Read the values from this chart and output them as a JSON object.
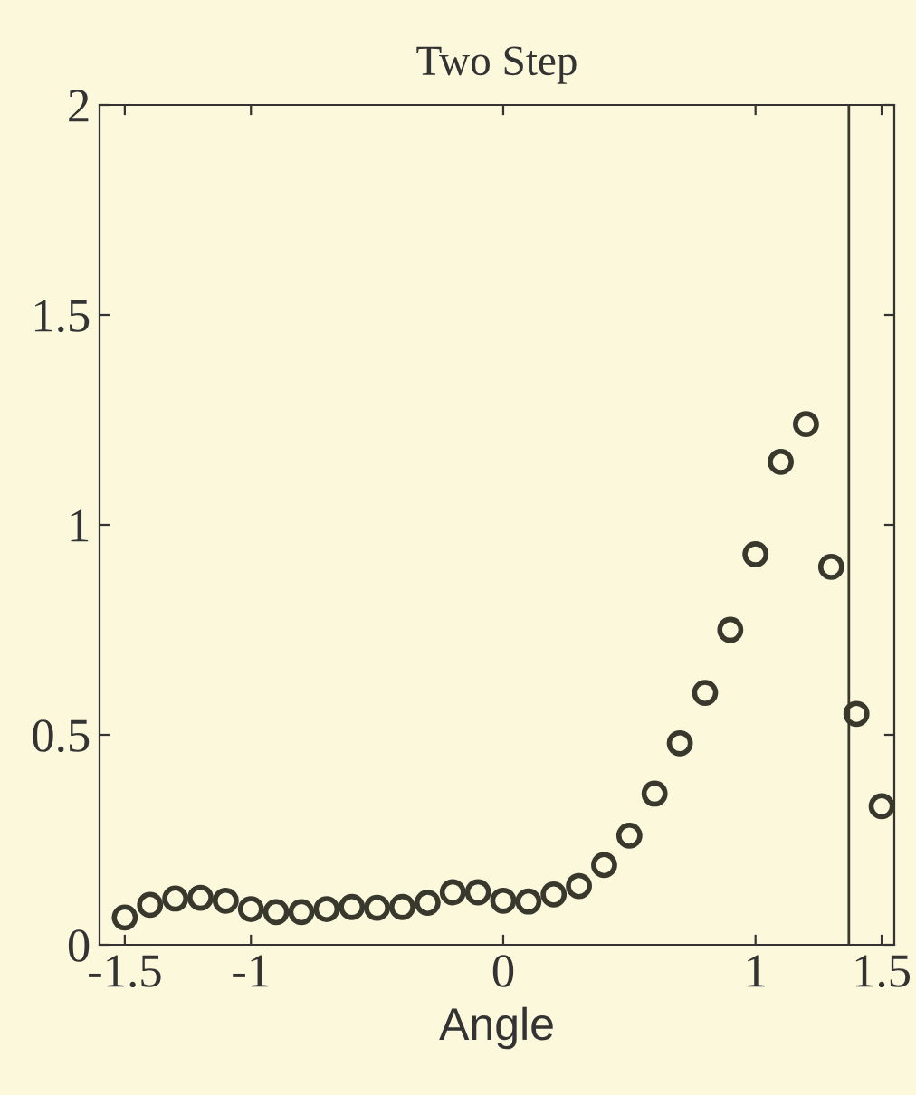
{
  "chart_data": {
    "type": "scatter",
    "title": "Two Step",
    "xlabel": "Angle",
    "x": [
      -1.5,
      -1.4,
      -1.3,
      -1.2,
      -1.1,
      -1.0,
      -0.9,
      -0.8,
      -0.7,
      -0.6,
      -0.5,
      -0.4,
      -0.3,
      -0.2,
      -0.1,
      0.0,
      0.1,
      0.2,
      0.3,
      0.4,
      0.5,
      0.6,
      0.7,
      0.8,
      0.9,
      1.0,
      1.1,
      1.2,
      1.3,
      1.4,
      1.5
    ],
    "series": [
      {
        "color": "#38382c",
        "values": [
          0.065,
          0.095,
          0.11,
          0.112,
          0.105,
          0.085,
          0.078,
          0.078,
          0.085,
          0.09,
          0.088,
          0.09,
          0.1,
          0.125,
          0.125,
          0.105,
          0.103,
          0.12,
          0.14,
          0.19,
          0.26,
          0.36,
          0.48,
          0.6,
          0.75,
          0.93,
          1.15,
          1.24,
          0.9,
          0.55,
          0.33
        ]
      }
    ],
    "marker": "circle",
    "xlim": [
      -1.6,
      1.55
    ],
    "ylim": [
      0,
      2
    ],
    "xticks": [
      -1.5,
      -1,
      0,
      1,
      1.5
    ],
    "yticks": [
      0,
      0.5,
      1,
      1.5,
      2
    ],
    "ref_lines": [
      {
        "axis": "x",
        "value": 1.37,
        "color": "#38382c"
      }
    ],
    "grid": false,
    "legend": false
  }
}
